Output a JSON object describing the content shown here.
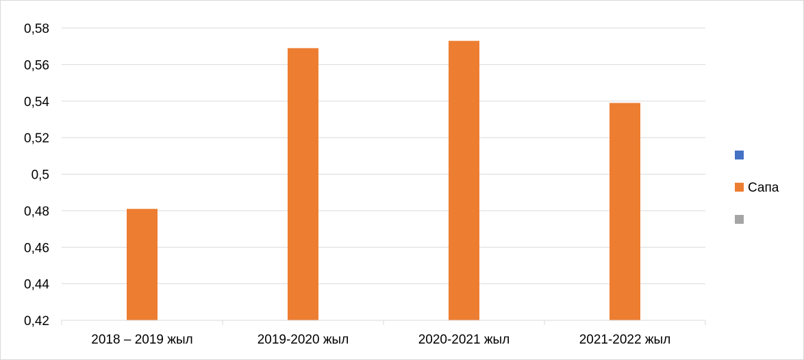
{
  "chart_data": {
    "type": "bar",
    "title": "",
    "xlabel": "",
    "ylabel": "",
    "categories": [
      "2018 – 2019 жыл",
      "2019-2020 жыл",
      "2020-2021 жыл",
      "2021-2022 жыл"
    ],
    "series": [
      {
        "name": "",
        "color": "#4472C4",
        "values": [
          null,
          null,
          null,
          null
        ]
      },
      {
        "name": "Сапа",
        "color": "#ED7D31",
        "values": [
          0.481,
          0.569,
          0.573,
          0.539
        ]
      },
      {
        "name": "",
        "color": "#A5A5A5",
        "values": [
          null,
          null,
          null,
          null
        ]
      }
    ],
    "ylim": [
      0.42,
      0.58
    ],
    "yticks": [
      "0,42",
      "0,44",
      "0,46",
      "0,48",
      "0,5",
      "0,52",
      "0,54",
      "0,56",
      "0,58"
    ],
    "grid": true,
    "legend_position": "right"
  }
}
